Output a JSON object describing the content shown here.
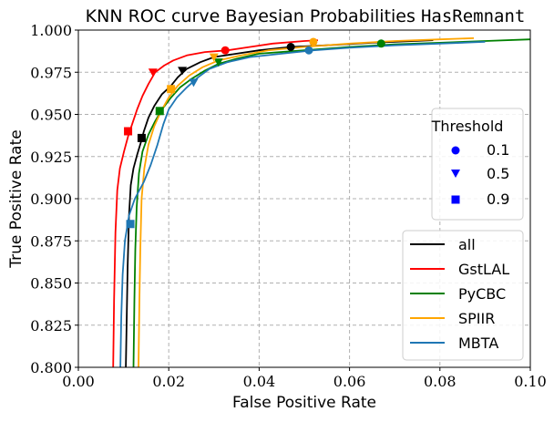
{
  "chart_data": {
    "type": "line",
    "title": "KNN ROC curve Bayesian Probabilities",
    "title_code": "HasRemnant",
    "xlabel": "False Positive Rate",
    "ylabel": "True Positive Rate",
    "xlim": [
      0.0,
      0.1
    ],
    "ylim": [
      0.8,
      1.0
    ],
    "xticks": [
      0.0,
      0.02,
      0.04,
      0.06,
      0.08,
      0.1
    ],
    "xtick_labels": [
      "0.00",
      "0.02",
      "0.04",
      "0.06",
      "0.08",
      "0.10"
    ],
    "yticks": [
      0.8,
      0.825,
      0.85,
      0.875,
      0.9,
      0.925,
      0.95,
      0.975,
      1.0
    ],
    "ytick_labels": [
      "0.800",
      "0.825",
      "0.850",
      "0.875",
      "0.900",
      "0.925",
      "0.950",
      "0.975",
      "1.000"
    ],
    "grid": true,
    "threshold_legend": {
      "title": "Threshold",
      "placement": "center-right",
      "entries": [
        {
          "label": "0.1",
          "marker": "circle"
        },
        {
          "label": "0.5",
          "marker": "triangle-down"
        },
        {
          "label": "0.9",
          "marker": "square"
        }
      ],
      "color": "#0000ff"
    },
    "series_legend_placement": "lower-right",
    "series": [
      {
        "name": "all",
        "color": "#000000",
        "points": [
          [
            0.0105,
            0.8
          ],
          [
            0.0107,
            0.83
          ],
          [
            0.0109,
            0.86
          ],
          [
            0.0112,
            0.89
          ],
          [
            0.0116,
            0.908
          ],
          [
            0.0122,
            0.918
          ],
          [
            0.013,
            0.926
          ],
          [
            0.0138,
            0.933
          ],
          [
            0.0145,
            0.94
          ],
          [
            0.0155,
            0.948
          ],
          [
            0.0168,
            0.955
          ],
          [
            0.0185,
            0.962
          ],
          [
            0.0205,
            0.967
          ],
          [
            0.022,
            0.972
          ],
          [
            0.024,
            0.977
          ],
          [
            0.027,
            0.981
          ],
          [
            0.03,
            0.984
          ],
          [
            0.035,
            0.986
          ],
          [
            0.04,
            0.988
          ],
          [
            0.047,
            0.99
          ],
          [
            0.055,
            0.991
          ],
          [
            0.065,
            0.9925
          ],
          [
            0.0785,
            0.994
          ]
        ],
        "markers": {
          "0.1": [
            0.047,
            0.99
          ],
          "0.5": [
            0.023,
            0.976
          ],
          "0.9": [
            0.014,
            0.936
          ]
        }
      },
      {
        "name": "GstLAL",
        "color": "#ff0000",
        "points": [
          [
            0.0077,
            0.8
          ],
          [
            0.0079,
            0.84
          ],
          [
            0.0082,
            0.88
          ],
          [
            0.0086,
            0.905
          ],
          [
            0.0092,
            0.918
          ],
          [
            0.0101,
            0.928
          ],
          [
            0.011,
            0.937
          ],
          [
            0.012,
            0.945
          ],
          [
            0.013,
            0.953
          ],
          [
            0.0142,
            0.961
          ],
          [
            0.0155,
            0.968
          ],
          [
            0.017,
            0.975
          ],
          [
            0.019,
            0.979
          ],
          [
            0.021,
            0.982
          ],
          [
            0.024,
            0.985
          ],
          [
            0.028,
            0.987
          ],
          [
            0.033,
            0.988
          ],
          [
            0.038,
            0.99
          ],
          [
            0.043,
            0.992
          ],
          [
            0.05,
            0.9935
          ],
          [
            0.053,
            0.994
          ]
        ],
        "markers": {
          "0.1": [
            0.0325,
            0.988
          ],
          "0.5": [
            0.0165,
            0.975
          ],
          "0.9": [
            0.011,
            0.94
          ]
        }
      },
      {
        "name": "PyCBC",
        "color": "#008000",
        "points": [
          [
            0.0122,
            0.8
          ],
          [
            0.0124,
            0.84
          ],
          [
            0.0126,
            0.87
          ],
          [
            0.0129,
            0.895
          ],
          [
            0.0134,
            0.915
          ],
          [
            0.0142,
            0.928
          ],
          [
            0.0155,
            0.938
          ],
          [
            0.017,
            0.946
          ],
          [
            0.0185,
            0.953
          ],
          [
            0.0205,
            0.96
          ],
          [
            0.0225,
            0.966
          ],
          [
            0.025,
            0.971
          ],
          [
            0.028,
            0.976
          ],
          [
            0.031,
            0.98
          ],
          [
            0.035,
            0.983
          ],
          [
            0.04,
            0.986
          ],
          [
            0.05,
            0.988
          ],
          [
            0.06,
            0.99
          ],
          [
            0.07,
            0.9915
          ],
          [
            0.08,
            0.9925
          ],
          [
            0.09,
            0.9935
          ],
          [
            0.1,
            0.9945
          ]
        ],
        "markers": {
          "0.1": [
            0.067,
            0.992
          ],
          "0.5": [
            0.031,
            0.981
          ],
          "0.9": [
            0.018,
            0.952
          ]
        }
      },
      {
        "name": "SPIIR",
        "color": "#ffa500",
        "points": [
          [
            0.0133,
            0.8
          ],
          [
            0.0135,
            0.84
          ],
          [
            0.0137,
            0.87
          ],
          [
            0.014,
            0.9
          ],
          [
            0.0146,
            0.918
          ],
          [
            0.0155,
            0.932
          ],
          [
            0.0168,
            0.943
          ],
          [
            0.0183,
            0.952
          ],
          [
            0.02,
            0.96
          ],
          [
            0.022,
            0.967
          ],
          [
            0.0245,
            0.973
          ],
          [
            0.0275,
            0.978
          ],
          [
            0.031,
            0.982
          ],
          [
            0.036,
            0.985
          ],
          [
            0.042,
            0.988
          ],
          [
            0.05,
            0.99
          ],
          [
            0.06,
            0.992
          ],
          [
            0.07,
            0.9935
          ],
          [
            0.08,
            0.9945
          ],
          [
            0.0875,
            0.9952
          ]
        ],
        "markers": {
          "0.1": [
            0.052,
            0.993
          ],
          "0.5": [
            0.03,
            0.984
          ],
          "0.9": [
            0.0205,
            0.965
          ]
        }
      },
      {
        "name": "MBTA",
        "color": "#1f77b4",
        "points": [
          [
            0.0093,
            0.8
          ],
          [
            0.0095,
            0.83
          ],
          [
            0.0098,
            0.855
          ],
          [
            0.0103,
            0.875
          ],
          [
            0.0112,
            0.89
          ],
          [
            0.0125,
            0.9
          ],
          [
            0.0145,
            0.91
          ],
          [
            0.016,
            0.92
          ],
          [
            0.0175,
            0.932
          ],
          [
            0.0188,
            0.944
          ],
          [
            0.02,
            0.953
          ],
          [
            0.0218,
            0.96
          ],
          [
            0.024,
            0.966
          ],
          [
            0.0265,
            0.972
          ],
          [
            0.029,
            0.977
          ],
          [
            0.033,
            0.981
          ],
          [
            0.038,
            0.984
          ],
          [
            0.045,
            0.986
          ],
          [
            0.052,
            0.988
          ],
          [
            0.06,
            0.9895
          ],
          [
            0.07,
            0.991
          ],
          [
            0.08,
            0.992
          ],
          [
            0.09,
            0.993
          ]
        ],
        "markers": {
          "0.1": [
            0.051,
            0.988
          ],
          "0.5": [
            0.0255,
            0.969
          ],
          "0.9": [
            0.0115,
            0.885
          ]
        }
      }
    ]
  }
}
